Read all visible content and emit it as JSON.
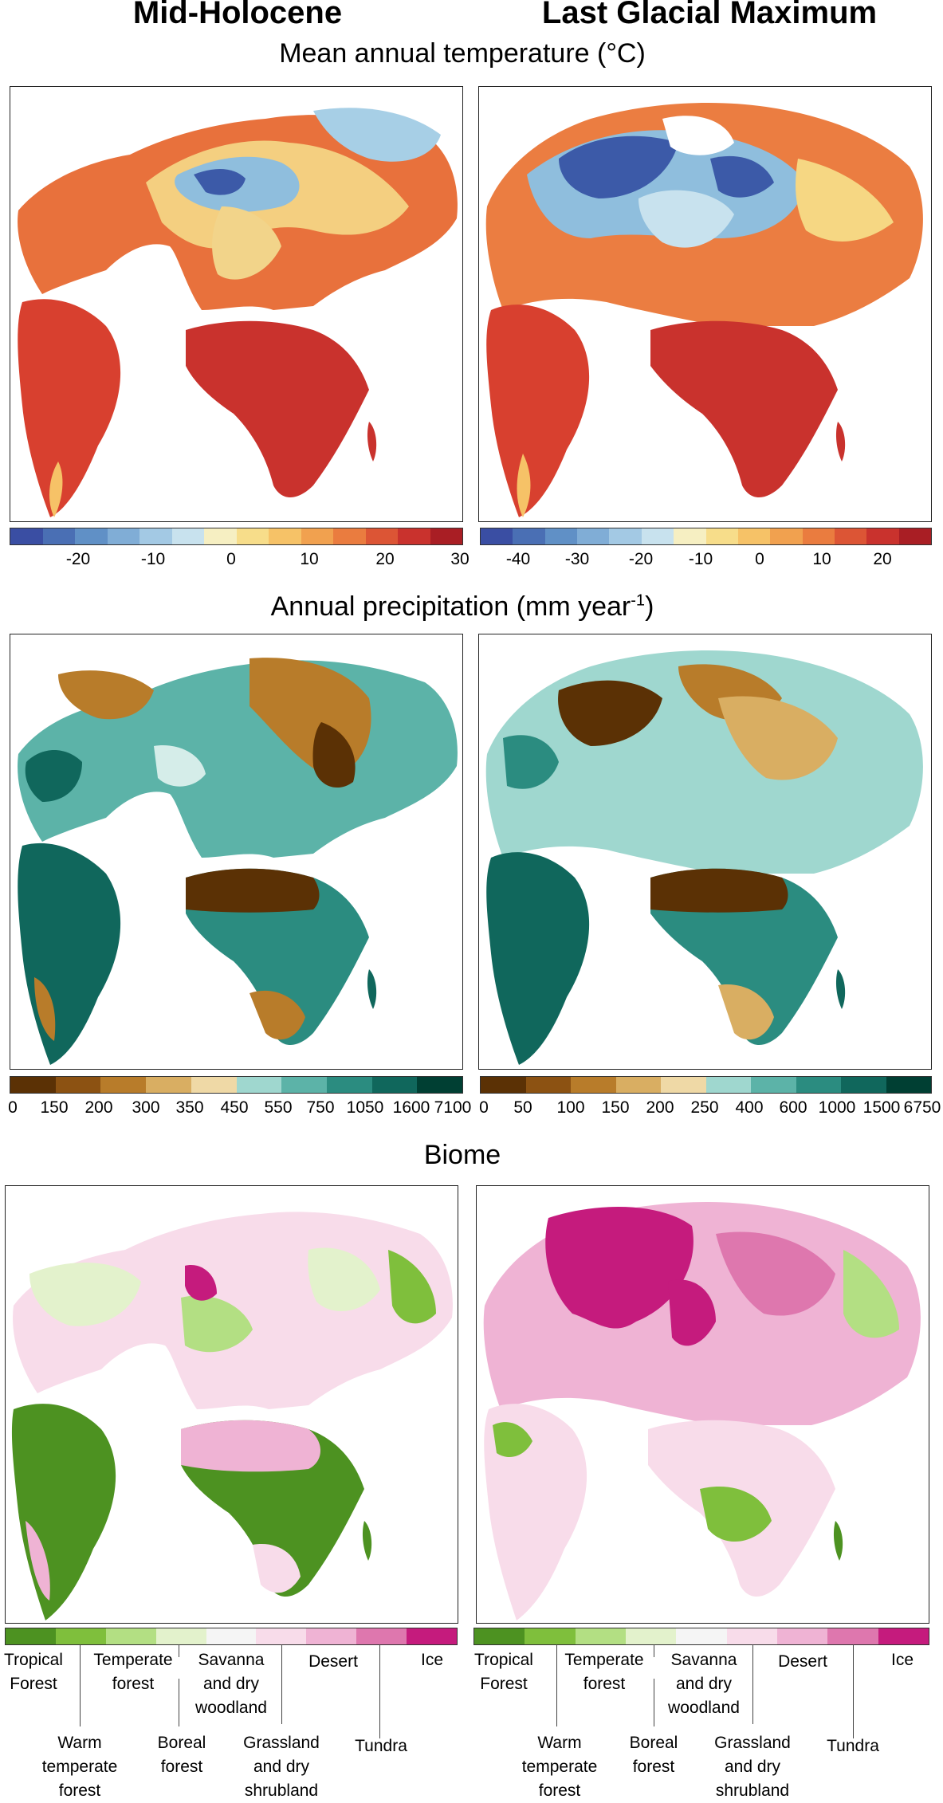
{
  "header": {
    "left_title": "Mid-Holocene",
    "right_title": "Last Glacial Maximum"
  },
  "rows": {
    "temperature": {
      "title": "Mean annual temperature (°C)"
    },
    "precipitation": {
      "title_main": "Annual precipitation (mm year",
      "title_sup": "-1",
      "title_end": ")"
    },
    "biome": {
      "title": "Biome"
    }
  },
  "colors": {
    "temp": [
      "#3a4ea3",
      "#4a6fb4",
      "#6090c6",
      "#80add6",
      "#a3c9e4",
      "#c8e2ee",
      "#f6efc2",
      "#f7dd8a",
      "#f6c267",
      "#f1a14f",
      "#ea7c3f",
      "#dc5535",
      "#c9322d",
      "#a91e24"
    ],
    "precip": [
      "#5b3105",
      "#8c5212",
      "#b87c2a",
      "#d9ae62",
      "#efd9a6",
      "#d5ede9",
      "#9fd7cf",
      "#5cb3a8",
      "#2b8c80",
      "#10675c",
      "#003f33"
    ],
    "biome": [
      "#4d9221",
      "#7fbf3c",
      "#b3df83",
      "#e3f2cc",
      "#f5f5f5",
      "#f8dcea",
      "#efb3d4",
      "#de77ae",
      "#c51b7d"
    ]
  },
  "colorbars": {
    "temp_mh_ticks": [
      "-20",
      "-10",
      "0",
      "10",
      "20",
      "30"
    ],
    "temp_lgm_ticks": [
      "-40",
      "-30",
      "-20",
      "-10",
      "0",
      "10",
      "20"
    ],
    "precip_mh_ticks": [
      "0",
      "150",
      "200",
      "300",
      "350",
      "450",
      "550",
      "750",
      "1050",
      "1600",
      "7100"
    ],
    "precip_lgm_ticks": [
      "0",
      "50",
      "100",
      "150",
      "200",
      "250",
      "400",
      "600",
      "1000",
      "1500",
      "6750"
    ]
  },
  "biome_legend": {
    "tropical_forest": "Tropical\nForest",
    "warm_temperate_forest": "Warm\ntemperate\nforest",
    "temperate_forest": "Temperate\nforest",
    "boreal_forest": "Boreal\nforest",
    "savanna": "Savanna\nand dry\nwoodland",
    "grassland": "Grassland\nand dry\nshrubland",
    "desert": "Desert",
    "tundra": "Tundra",
    "ice": "Ice"
  }
}
